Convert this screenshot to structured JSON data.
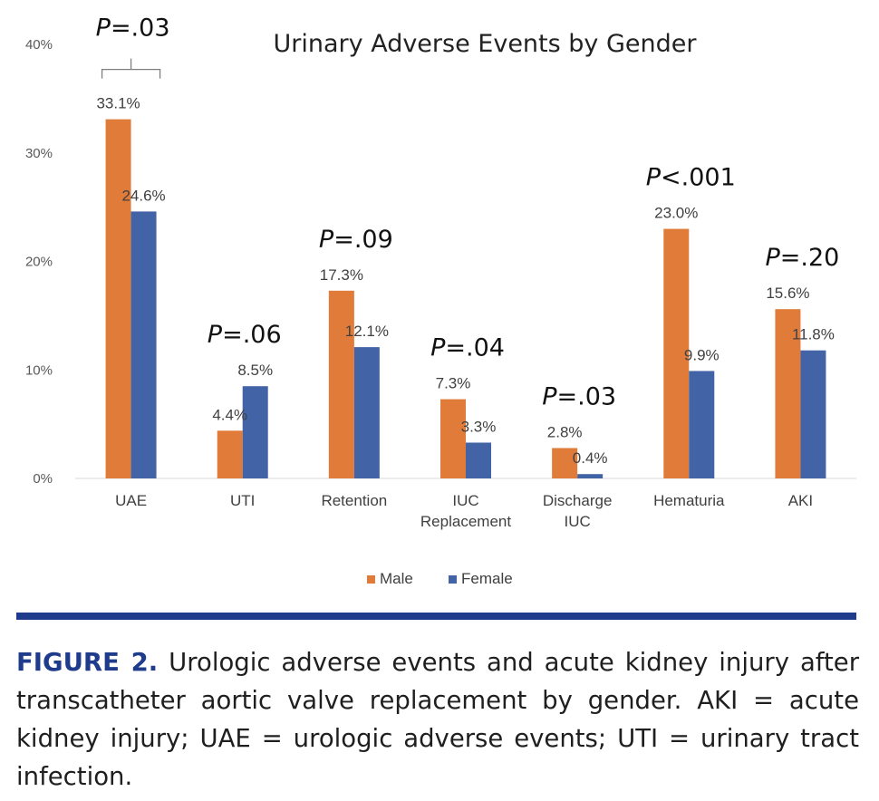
{
  "chart_data": {
    "type": "bar",
    "title": "Urinary Adverse Events by Gender",
    "categories": [
      [
        "UAE"
      ],
      [
        "UTI"
      ],
      [
        "Retention"
      ],
      [
        "IUC",
        "Replacement"
      ],
      [
        "Discharge",
        "IUC"
      ],
      [
        "Hematuria"
      ],
      [
        "AKI"
      ]
    ],
    "series": [
      {
        "name": "Male",
        "color": "#e07b39",
        "values": [
          33.1,
          4.4,
          17.3,
          7.3,
          2.8,
          23.0,
          15.6
        ],
        "labels": [
          "33.1%",
          "4.4%",
          "17.3%",
          "7.3%",
          "2.8%",
          "23.0%",
          "15.6%"
        ]
      },
      {
        "name": "Female",
        "color": "#4264a6",
        "values": [
          24.6,
          8.5,
          12.1,
          3.3,
          0.4,
          9.9,
          11.8
        ],
        "labels": [
          "24.6%",
          "8.5%",
          "12.1%",
          "3.3%",
          "0.4%",
          "9.9%",
          "11.8%"
        ]
      }
    ],
    "p_values": [
      {
        "italic": "P",
        "rest": "=.03"
      },
      {
        "italic": "P",
        "rest": "=.06"
      },
      {
        "italic": "P",
        "rest": "=.09"
      },
      {
        "italic": "P",
        "rest": "=.04"
      },
      {
        "italic": "P",
        "rest": "=.03"
      },
      {
        "italic": "P",
        "rest": "<.001"
      },
      {
        "italic": "P",
        "rest": "=.20"
      }
    ],
    "ylim": [
      0,
      40
    ],
    "yticks": [
      "0%",
      "10%",
      "20%",
      "30%",
      "40%"
    ],
    "legend_position": "bottom-center",
    "grid": false
  },
  "caption": {
    "label": "FIGURE 2.",
    "text": " Urologic adverse events and acute kidney injury after transcatheter aortic valve replacement by gender. AKI = acute kidney injury; UAE = urologic adverse events; UTI = urinary tract infection.",
    "label_color": "#1f3b8c"
  },
  "divider_color": "#1f3b8c"
}
